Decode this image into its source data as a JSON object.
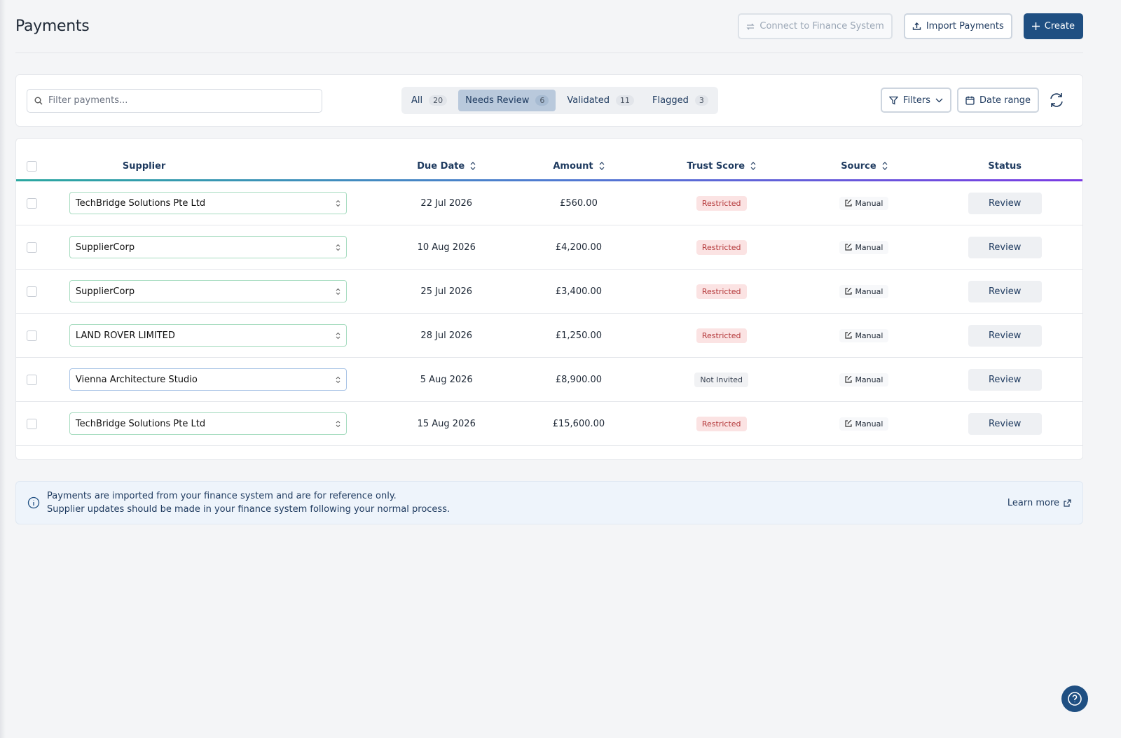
{
  "header": {
    "title": "Payments",
    "connect": "Connect to Finance System",
    "import": "Import Payments",
    "create": "Create"
  },
  "search": {
    "placeholder": "Filter payments..."
  },
  "tabs": [
    {
      "label": "All",
      "count": 20
    },
    {
      "label": "Needs Review",
      "count": 6
    },
    {
      "label": "Validated",
      "count": 11
    },
    {
      "label": "Flagged",
      "count": 3
    }
  ],
  "toolbar": {
    "filters": "Filters",
    "date_range": "Date range"
  },
  "table": {
    "columns": [
      "Supplier",
      "Due Date",
      "Amount",
      "Trust Score",
      "Source",
      "Status"
    ],
    "rows": [
      [
        "TechBridge Solutions Pte Ltd",
        "22 Jul 2026",
        "£560.00",
        "Restricted",
        "Manual",
        "Review"
      ],
      [
        "SupplierCorp",
        "10 Aug 2026",
        "£4,200.00",
        "Restricted",
        "Manual",
        "Review"
      ],
      [
        "SupplierCorp",
        "25 Jul 2026",
        "£3,400.00",
        "Restricted",
        "Manual",
        "Review"
      ],
      [
        "LAND ROVER LIMITED",
        "28 Jul 2026",
        "£1,250.00",
        "Restricted",
        "Manual",
        "Review"
      ],
      [
        "Vienna Architecture Studio",
        "5 Aug 2026",
        "£8,900.00",
        "Not Invited",
        "Manual",
        "Review"
      ],
      [
        "TechBridge Solutions Pte Ltd",
        "15 Aug 2026",
        "£15,600.00",
        "Restricted",
        "Manual",
        "Review"
      ]
    ]
  },
  "notice": {
    "lines": [
      "Payments are imported from your finance system and are for reference only.",
      "Supplier updates should be made in your finance system following your normal process."
    ],
    "link": "Learn more"
  }
}
